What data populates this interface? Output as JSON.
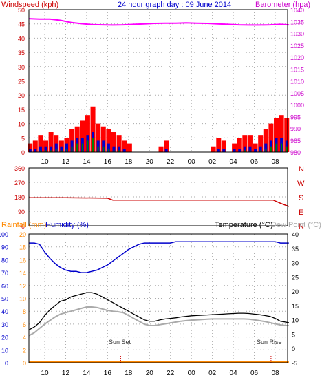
{
  "header": {
    "wind_title": "Windspeed (kph)",
    "graph_title": "24 hour graph day : 09 June 2014",
    "baro_title": "Barometer (hpa)"
  },
  "bottom_header": {
    "rain_title": "Rainfall (mm)",
    "humidity_title": "Humidity (%)",
    "temp_title": "Temperature (°C)",
    "dew_title": "Dew Point (°C)"
  },
  "annotations": {
    "sun_set": "Sun Set",
    "sun_rise": "Sun Rise"
  },
  "colors": {
    "wind": "#ff0000",
    "gust": "#ff0000",
    "wind_avg": "#0000cc",
    "wind_low": "#008000",
    "barometer": "#ff00ff",
    "direction": "#cc0000",
    "humidity": "#0000cc",
    "temperature": "#000000",
    "dewpoint": "#aaaaaa",
    "rainfall": "#ff8800",
    "axis_wind": "#cc0000",
    "axis_baro": "#cc00cc",
    "axis_blue": "#0000cc",
    "axis_orange": "#ff8800"
  },
  "chart_data": [
    {
      "type": "bar",
      "name": "windspeed",
      "xlabel": "",
      "ylabel": "Windspeed (kph)",
      "x_ticks": [
        "10",
        "12",
        "14",
        "16",
        "18",
        "20",
        "22",
        "00",
        "02",
        "04",
        "06",
        "08"
      ],
      "ylim": [
        0,
        50
      ],
      "y_ticks": [
        0,
        5,
        10,
        15,
        20,
        25,
        30,
        35,
        40,
        45,
        50
      ],
      "y2label": "Barometer (hpa)",
      "y2lim": [
        980,
        1040
      ],
      "y2_ticks": [
        980,
        985,
        990,
        995,
        1000,
        1005,
        1010,
        1015,
        1020,
        1025,
        1030,
        1035,
        1040
      ],
      "x_hours": [
        8.6,
        9.1,
        9.6,
        10.1,
        10.6,
        11.1,
        11.6,
        12.1,
        12.6,
        13.1,
        13.6,
        14.1,
        14.6,
        15.1,
        15.6,
        16.1,
        16.6,
        17.1,
        17.6,
        18.1,
        18.6,
        19.1,
        19.6,
        20.1,
        20.6,
        21.1,
        21.6,
        22.1,
        22.6,
        23.1,
        23.6,
        24.1,
        24.6,
        25.1,
        25.6,
        26.1,
        26.6,
        27.1,
        27.6,
        28.1,
        28.6,
        29.1,
        29.6,
        30.1,
        30.6,
        31.1,
        31.6,
        32.1,
        32.6,
        33.1
      ],
      "gust": [
        3,
        4,
        6,
        4,
        7,
        6,
        4,
        5,
        8,
        9,
        11,
        13,
        16,
        10,
        9,
        8,
        7,
        6,
        4,
        3,
        0,
        0,
        0,
        0,
        0,
        2,
        4,
        0,
        0,
        0,
        0,
        0,
        0,
        0,
        0,
        2,
        5,
        4,
        0,
        3,
        5,
        6,
        6,
        3,
        6,
        8,
        10,
        12,
        13,
        12
      ],
      "average": [
        1,
        1,
        2,
        2,
        2,
        3,
        2,
        3,
        4,
        5,
        5,
        6,
        7,
        4,
        4,
        3,
        2,
        2,
        1,
        0,
        0,
        0,
        0,
        0,
        0,
        0,
        1,
        0,
        0,
        0,
        0,
        0,
        0,
        0,
        0,
        0,
        1,
        1,
        0,
        1,
        1,
        2,
        2,
        1,
        2,
        3,
        4,
        5,
        5,
        4
      ],
      "baro_hours": [
        8.5,
        9.5,
        10.5,
        11.5,
        12.5,
        13.5,
        14.5,
        15.5,
        16.5,
        17.5,
        18.5,
        19.5,
        20.5,
        21.5,
        22.5,
        23.5,
        24.5,
        25.5,
        26.5,
        27.5,
        28.5,
        29.5,
        30.5,
        31.5,
        32.5,
        33.3
      ],
      "barometer": [
        1036.2,
        1036.0,
        1036.0,
        1035.5,
        1034.6,
        1034.1,
        1033.7,
        1033.6,
        1033.5,
        1033.6,
        1033.8,
        1034.0,
        1034.2,
        1034.3,
        1034.3,
        1034.4,
        1034.3,
        1034.2,
        1034.0,
        1033.8,
        1033.6,
        1033.5,
        1033.5,
        1033.6,
        1033.8,
        1033.6
      ]
    },
    {
      "type": "line",
      "name": "wind_direction",
      "ylim": [
        0,
        360
      ],
      "y_ticks": [
        0,
        90,
        180,
        270,
        360
      ],
      "y2_labels": [
        "N",
        "W",
        "S",
        "E",
        "N"
      ],
      "x_hours": [
        8.5,
        12,
        16,
        16.5,
        20,
        24,
        28,
        31.8,
        32.5,
        33.3
      ],
      "direction": [
        175,
        175,
        172,
        160,
        160,
        160,
        160,
        160,
        140,
        120
      ]
    },
    {
      "type": "line",
      "name": "temperature_humidity",
      "ylabel_left": "Rainfall (mm) / Humidity (%)",
      "humidity_lim": [
        0,
        100
      ],
      "humidity_ticks": [
        0,
        10,
        20,
        30,
        40,
        50,
        60,
        70,
        80,
        90,
        100
      ],
      "rain_lim": [
        0,
        20
      ],
      "rain_ticks": [
        0,
        2,
        4,
        6,
        8,
        10,
        12,
        14,
        16,
        18,
        20
      ],
      "temp_lim": [
        -5,
        40
      ],
      "temp_ticks": [
        -5,
        0,
        5,
        10,
        15,
        20,
        25,
        30,
        35,
        40
      ],
      "x_hours": [
        8.5,
        9,
        9.5,
        10,
        10.5,
        11,
        11.5,
        12,
        12.5,
        13,
        13.5,
        14,
        14.5,
        15,
        15.5,
        16,
        16.5,
        17,
        17.5,
        18,
        18.5,
        19,
        19.5,
        20,
        20.5,
        21,
        21.5,
        22,
        22.5,
        23,
        23.5,
        24,
        24.5,
        25,
        25.5,
        26,
        26.5,
        27,
        27.5,
        28,
        28.5,
        29,
        29.5,
        30,
        30.5,
        31,
        31.5,
        32,
        32.5,
        33,
        33.3
      ],
      "humidity": [
        93,
        93,
        92,
        86,
        81,
        77,
        74,
        72,
        71,
        71,
        70,
        70,
        71,
        72,
        74,
        76,
        79,
        82,
        85,
        88,
        90,
        92,
        93,
        93,
        93,
        93,
        93,
        93,
        94,
        94,
        94,
        94,
        94,
        94,
        94,
        94,
        94,
        94,
        94,
        94,
        94,
        94,
        94,
        94,
        94,
        94,
        94,
        94,
        93,
        93,
        93
      ],
      "temperature": [
        6.5,
        7.5,
        9,
        11.5,
        13.5,
        15,
        16.5,
        17,
        18,
        18.5,
        19,
        19.5,
        19.5,
        19,
        18,
        17,
        16,
        15,
        14,
        13,
        12,
        11,
        10,
        9.5,
        9.5,
        10,
        10.3,
        10.5,
        10.7,
        11,
        11.2,
        11.4,
        11.5,
        11.6,
        11.7,
        11.8,
        11.9,
        12,
        12.1,
        12.2,
        12.3,
        12.3,
        12.2,
        12,
        11.8,
        11.5,
        11.2,
        10.5,
        9.5,
        9.2,
        9
      ],
      "dewpoint": [
        4.5,
        5.5,
        7,
        8.5,
        9.8,
        11,
        12,
        12.5,
        13,
        13.5,
        14,
        14.5,
        14.5,
        14.3,
        13.8,
        13.3,
        13,
        12.8,
        12.5,
        11.5,
        10.5,
        9.5,
        8.5,
        8,
        8,
        8.3,
        8.6,
        8.9,
        9.2,
        9.5,
        9.7,
        9.9,
        10,
        10.1,
        10.2,
        10.3,
        10.3,
        10.3,
        10.3,
        10.3,
        10.3,
        10.3,
        10.2,
        10,
        9.7,
        9.4,
        9,
        8.6,
        8.2,
        8,
        8
      ],
      "rainfall": [
        0,
        0
      ],
      "rain_hours": [
        8.5,
        33.3
      ],
      "sun_set_hour": 17.25,
      "sun_rise_hour": 31.6
    }
  ]
}
